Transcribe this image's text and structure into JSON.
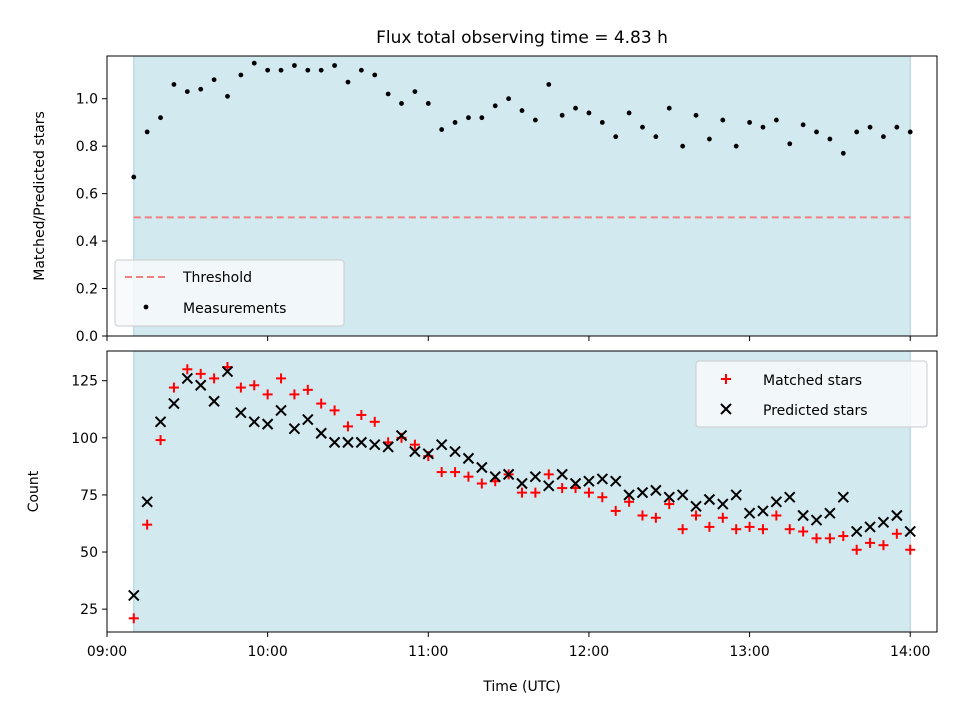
{
  "chart_data": [
    {
      "type": "scatter",
      "title": "Flux total observing time = 4.83 h",
      "xlabel": "",
      "ylabel": "Matched/Predicted stars",
      "xlim": [
        "09:00",
        "14:10"
      ],
      "ylim": [
        0,
        1.18
      ],
      "yticks": [
        0.0,
        0.2,
        0.4,
        0.6,
        0.8,
        1.0
      ],
      "ytick_labels": [
        "0.0",
        "0.2",
        "0.4",
        "0.6",
        "0.8",
        "1.0"
      ],
      "xticks": [
        "09:00",
        "10:00",
        "11:00",
        "12:00",
        "13:00",
        "14:00"
      ],
      "shaded_interval": [
        "09:10",
        "14:00"
      ],
      "shaded_color": "#d3e9f0",
      "legend_position": "lower-left",
      "threshold": {
        "name": "Threshold",
        "value": 0.5,
        "color": "#f08080",
        "style": "dashed"
      },
      "series": [
        {
          "name": "Measurements",
          "marker": "dot",
          "color": "#000000",
          "x": [
            "09:10",
            "09:15",
            "09:20",
            "09:25",
            "09:30",
            "09:35",
            "09:40",
            "09:45",
            "09:50",
            "09:55",
            "10:00",
            "10:05",
            "10:10",
            "10:15",
            "10:20",
            "10:25",
            "10:30",
            "10:35",
            "10:40",
            "10:45",
            "10:50",
            "10:55",
            "11:00",
            "11:05",
            "11:10",
            "11:15",
            "11:20",
            "11:25",
            "11:30",
            "11:35",
            "11:40",
            "11:45",
            "11:50",
            "11:55",
            "12:00",
            "12:05",
            "12:10",
            "12:15",
            "12:20",
            "12:25",
            "12:30",
            "12:35",
            "12:40",
            "12:45",
            "12:50",
            "12:55",
            "13:00",
            "13:05",
            "13:10",
            "13:15",
            "13:20",
            "13:25",
            "13:30",
            "13:35",
            "13:40",
            "13:45",
            "13:50",
            "13:55",
            "14:00"
          ],
          "y": [
            0.67,
            0.86,
            0.92,
            1.06,
            1.03,
            1.04,
            1.08,
            1.01,
            1.1,
            1.15,
            1.12,
            1.12,
            1.14,
            1.12,
            1.12,
            1.14,
            1.07,
            1.12,
            1.1,
            1.02,
            0.98,
            1.03,
            0.98,
            0.87,
            0.9,
            0.92,
            0.92,
            0.97,
            1.0,
            0.95,
            0.91,
            1.06,
            0.93,
            0.96,
            0.94,
            0.9,
            0.84,
            0.94,
            0.88,
            0.84,
            0.96,
            0.8,
            0.93,
            0.83,
            0.91,
            0.8,
            0.9,
            0.88,
            0.91,
            0.81,
            0.89,
            0.86,
            0.83,
            0.77,
            0.86,
            0.88,
            0.84,
            0.88,
            0.86
          ]
        }
      ]
    },
    {
      "type": "scatter",
      "title": "",
      "xlabel": "Time (UTC)",
      "ylabel": "Count",
      "xlim": [
        "09:00",
        "14:10"
      ],
      "ylim": [
        15,
        138
      ],
      "yticks": [
        25,
        50,
        75,
        100,
        125
      ],
      "ytick_labels": [
        "25",
        "50",
        "75",
        "100",
        "125"
      ],
      "xticks": [
        "09:00",
        "10:00",
        "11:00",
        "12:00",
        "13:00",
        "14:00"
      ],
      "xtick_labels": [
        "09:00",
        "10:00",
        "11:00",
        "12:00",
        "13:00",
        "14:00"
      ],
      "shaded_interval": [
        "09:10",
        "14:00"
      ],
      "shaded_color": "#d3e9f0",
      "legend_position": "upper-right",
      "series": [
        {
          "name": "Matched stars",
          "marker": "plus",
          "color": "#ff0000",
          "x": [
            "09:10",
            "09:15",
            "09:20",
            "09:25",
            "09:30",
            "09:35",
            "09:40",
            "09:45",
            "09:50",
            "09:55",
            "10:00",
            "10:05",
            "10:10",
            "10:15",
            "10:20",
            "10:25",
            "10:30",
            "10:35",
            "10:40",
            "10:45",
            "10:50",
            "10:55",
            "11:00",
            "11:05",
            "11:10",
            "11:15",
            "11:20",
            "11:25",
            "11:30",
            "11:35",
            "11:40",
            "11:45",
            "11:50",
            "11:55",
            "12:00",
            "12:05",
            "12:10",
            "12:15",
            "12:20",
            "12:25",
            "12:30",
            "12:35",
            "12:40",
            "12:45",
            "12:50",
            "12:55",
            "13:00",
            "13:05",
            "13:10",
            "13:15",
            "13:20",
            "13:25",
            "13:30",
            "13:35",
            "13:40",
            "13:45",
            "13:50",
            "13:55",
            "14:00"
          ],
          "y": [
            21,
            62,
            99,
            122,
            130,
            128,
            126,
            131,
            122,
            123,
            119,
            126,
            119,
            121,
            115,
            112,
            105,
            110,
            107,
            98,
            100,
            97,
            92,
            85,
            85,
            83,
            80,
            81,
            84,
            76,
            76,
            84,
            78,
            78,
            76,
            74,
            68,
            72,
            66,
            65,
            71,
            60,
            66,
            61,
            65,
            60,
            61,
            60,
            66,
            60,
            59,
            56,
            56,
            57,
            51,
            54,
            53,
            58,
            51
          ]
        },
        {
          "name": "Predicted stars",
          "marker": "x",
          "color": "#000000",
          "x": [
            "09:10",
            "09:15",
            "09:20",
            "09:25",
            "09:30",
            "09:35",
            "09:40",
            "09:45",
            "09:50",
            "09:55",
            "10:00",
            "10:05",
            "10:10",
            "10:15",
            "10:20",
            "10:25",
            "10:30",
            "10:35",
            "10:40",
            "10:45",
            "10:50",
            "10:55",
            "11:00",
            "11:05",
            "11:10",
            "11:15",
            "11:20",
            "11:25",
            "11:30",
            "11:35",
            "11:40",
            "11:45",
            "11:50",
            "11:55",
            "12:00",
            "12:05",
            "12:10",
            "12:15",
            "12:20",
            "12:25",
            "12:30",
            "12:35",
            "12:40",
            "12:45",
            "12:50",
            "12:55",
            "13:00",
            "13:05",
            "13:10",
            "13:15",
            "13:20",
            "13:25",
            "13:30",
            "13:35",
            "13:40",
            "13:45",
            "13:50",
            "13:55",
            "14:00"
          ],
          "y": [
            31,
            72,
            107,
            115,
            126,
            123,
            116,
            129,
            111,
            107,
            106,
            112,
            104,
            108,
            102,
            98,
            98,
            98,
            97,
            96,
            101,
            94,
            93,
            97,
            94,
            91,
            87,
            83,
            84,
            80,
            83,
            79,
            84,
            80,
            81,
            82,
            81,
            75,
            76,
            77,
            74,
            75,
            70,
            73,
            71,
            75,
            67,
            68,
            72,
            74,
            66,
            64,
            67,
            74,
            59,
            61,
            63,
            66,
            59
          ]
        }
      ]
    }
  ]
}
